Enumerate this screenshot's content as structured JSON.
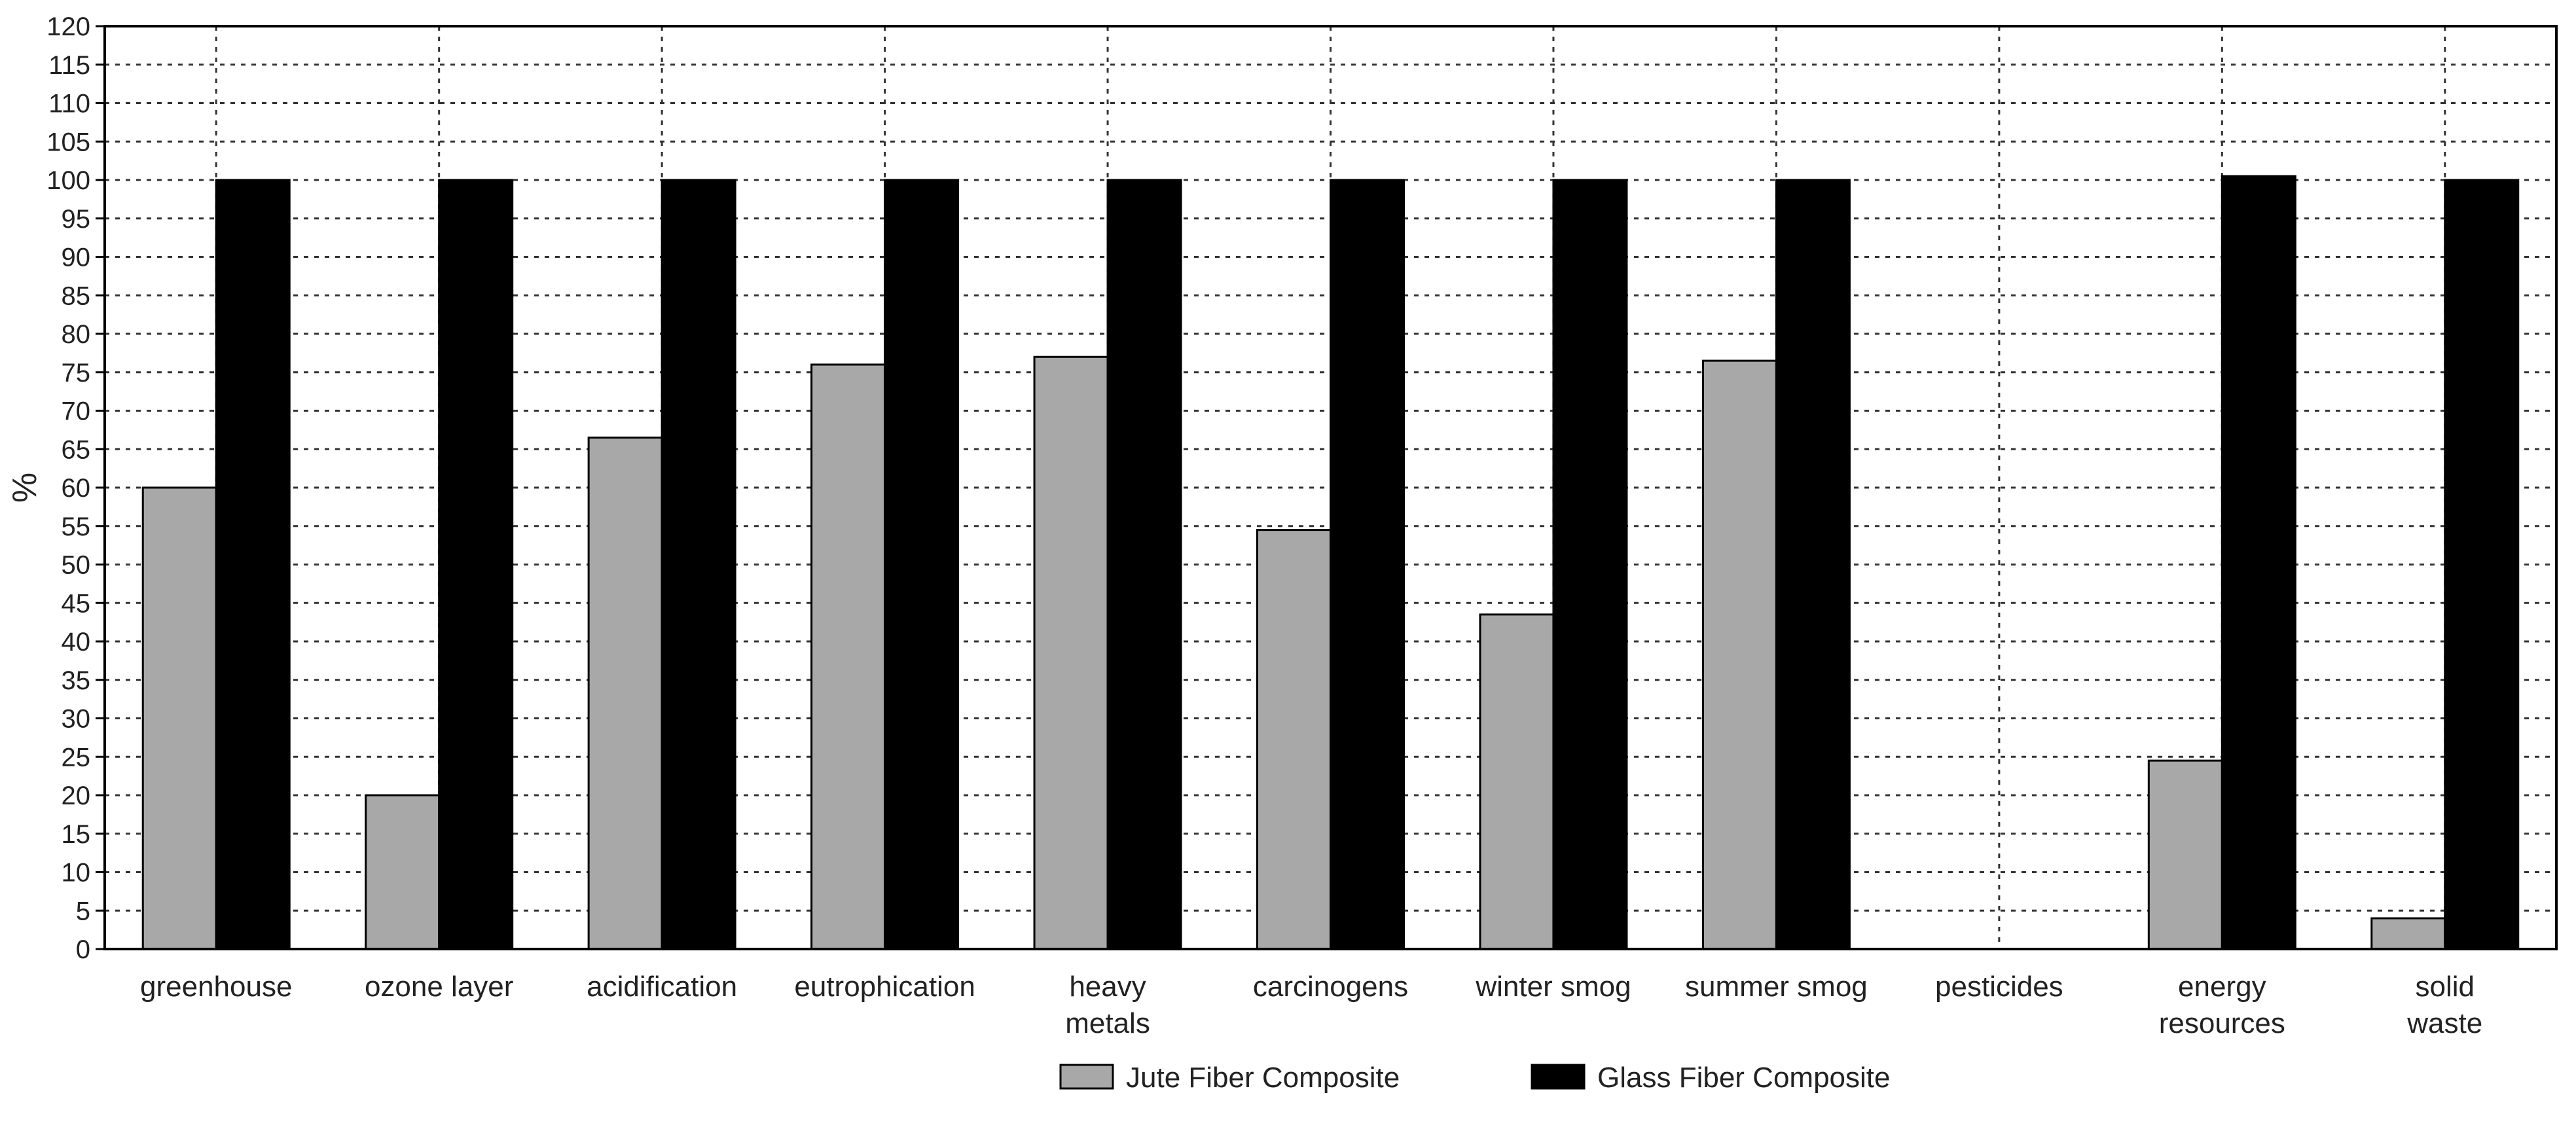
{
  "chart_data": {
    "type": "bar",
    "title": "",
    "xlabel": "",
    "ylabel": "%",
    "ylim": [
      0,
      120
    ],
    "ytick_step": 5,
    "yticks": [
      "0",
      "5",
      "10",
      "15",
      "20",
      "25",
      "30",
      "35",
      "40",
      "45",
      "50",
      "55",
      "60",
      "65",
      "70",
      "75",
      "80",
      "85",
      "90",
      "95",
      "100",
      "105",
      "110",
      "115",
      "120"
    ],
    "grid": true,
    "grid_style": "dotted",
    "legend_position": "bottom-center",
    "categories": [
      [
        "greenhouse"
      ],
      [
        "ozone layer"
      ],
      [
        "acidification"
      ],
      [
        "eutrophication"
      ],
      [
        "heavy",
        "metals"
      ],
      [
        "carcinogens"
      ],
      [
        "winter smog"
      ],
      [
        "summer smog"
      ],
      [
        "pesticides"
      ],
      [
        "energy",
        "resources"
      ],
      [
        "solid",
        "waste"
      ]
    ],
    "series": [
      {
        "name": "Jute Fiber Composite",
        "color": "#a8a8a8",
        "values": [
          60,
          20,
          66.5,
          76,
          77,
          54.5,
          43.5,
          76.5,
          0,
          24.5,
          4
        ]
      },
      {
        "name": "Glass Fiber Composite",
        "color": "#000000",
        "values": [
          100,
          100,
          100,
          100,
          100,
          100,
          100,
          100,
          0,
          100.5,
          100
        ]
      }
    ]
  }
}
